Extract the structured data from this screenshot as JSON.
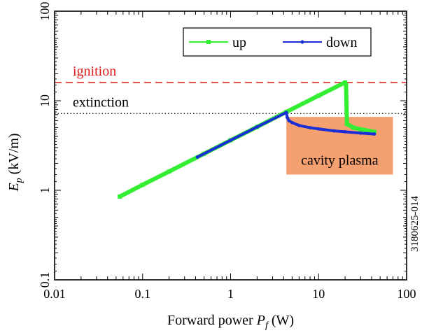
{
  "chart_data": {
    "type": "line",
    "xscale": "log",
    "yscale": "log",
    "xlim": [
      0.01,
      100
    ],
    "ylim": [
      0.1,
      100
    ],
    "xticks": [
      {
        "value": 0.01,
        "label": "0.01"
      },
      {
        "value": 0.1,
        "label": "0.1"
      },
      {
        "value": 1,
        "label": "1"
      },
      {
        "value": 10,
        "label": "10"
      },
      {
        "value": 100,
        "label": "100"
      }
    ],
    "yticks": [
      {
        "value": 0.1,
        "label": "0.1"
      },
      {
        "value": 1,
        "label": "1"
      },
      {
        "value": 10,
        "label": "10"
      },
      {
        "value": 100,
        "label": "100"
      }
    ],
    "xlabel": {
      "main": "Forward power ",
      "var": "P",
      "sub": "f",
      "unit": " (W)"
    },
    "ylabel": {
      "var": "E",
      "sub": "p",
      "unit": " (kV/m)"
    },
    "grid": false,
    "legend_position": "top-right",
    "series": [
      {
        "name": "up",
        "color": "#33ee33",
        "x": [
          0.055,
          0.1,
          0.2,
          0.5,
          1,
          2,
          4.3,
          10,
          20,
          20.5,
          21,
          25,
          30,
          43
        ],
        "y": [
          0.85,
          1.15,
          1.62,
          2.56,
          3.62,
          5.1,
          7.5,
          11.4,
          16.0,
          15.0,
          5.5,
          5.0,
          4.8,
          4.5
        ]
      },
      {
        "name": "down",
        "color": "#1a2ed6",
        "x": [
          0.42,
          1,
          2,
          4.3,
          4.4,
          4.6,
          5,
          6,
          8,
          10,
          15,
          20,
          30,
          43
        ],
        "y": [
          2.35,
          3.62,
          5.1,
          7.4,
          6.5,
          6.0,
          5.7,
          5.3,
          5.0,
          4.85,
          4.6,
          4.5,
          4.35,
          4.25
        ]
      }
    ],
    "hlines": [
      {
        "label": "ignition",
        "y": 16,
        "color": "#e01a1a",
        "style": "dashed"
      },
      {
        "label": "extinction",
        "y": 7.2,
        "color": "#000000",
        "style": "dotted"
      }
    ],
    "region": {
      "label": "cavity plasma",
      "x": [
        4.3,
        70
      ],
      "y": [
        1.5,
        6.6
      ],
      "color": "#f5a070"
    },
    "side_label": "3180625-014"
  }
}
